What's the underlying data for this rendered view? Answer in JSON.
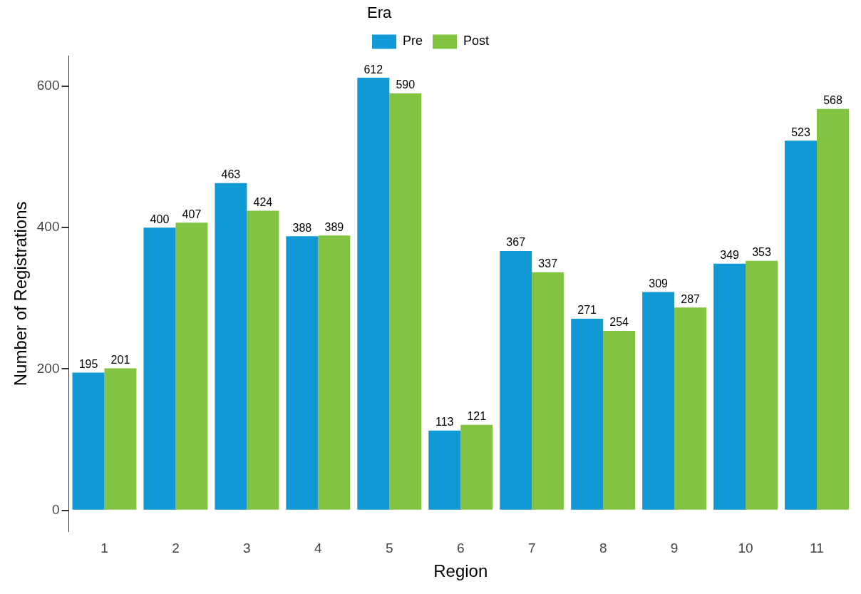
{
  "chart_data": {
    "type": "bar",
    "xlabel": "Region",
    "ylabel": "Number of Registrations",
    "legend_title": "Era",
    "categories": [
      "1",
      "2",
      "3",
      "4",
      "5",
      "6",
      "7",
      "8",
      "9",
      "10",
      "11"
    ],
    "series": [
      {
        "name": "Pre",
        "color": "#1199d6",
        "values": [
          195,
          400,
          463,
          388,
          612,
          113,
          367,
          271,
          309,
          349,
          523
        ]
      },
      {
        "name": "Post",
        "color": "#82c341",
        "values": [
          201,
          407,
          424,
          389,
          590,
          121,
          337,
          254,
          287,
          353,
          568
        ]
      }
    ],
    "ylim": [
      -30,
      643
    ],
    "yticks": [
      0,
      200,
      400,
      600
    ],
    "grid": false,
    "legend": "top",
    "data_labels": true
  }
}
